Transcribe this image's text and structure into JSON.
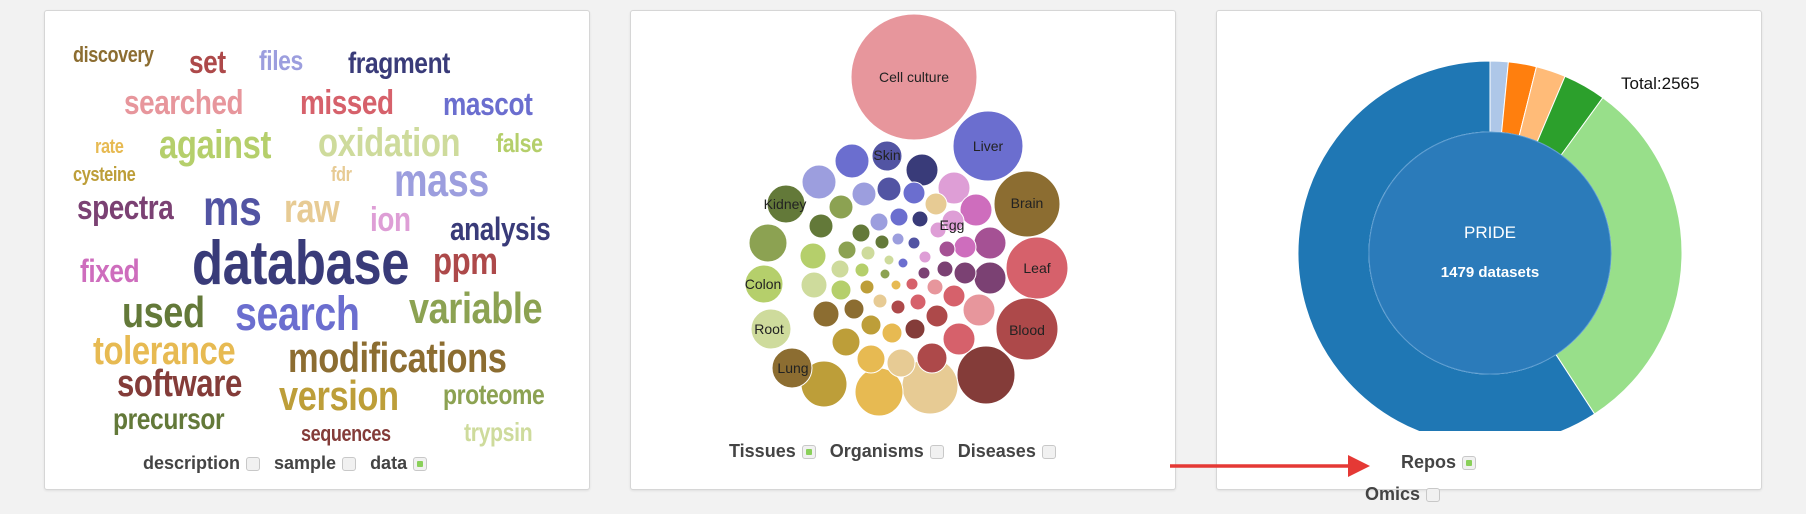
{
  "word_cloud": {
    "words": [
      {
        "text": "discovery",
        "color": "#8c6d31"
      },
      {
        "text": "set",
        "color": "#ad494a"
      },
      {
        "text": "files",
        "color": "#9c9ede"
      },
      {
        "text": "fragment",
        "color": "#393b79"
      },
      {
        "text": "searched",
        "color": "#e7969c"
      },
      {
        "text": "missed",
        "color": "#d6616b"
      },
      {
        "text": "mascot",
        "color": "#6b6ecf"
      },
      {
        "text": "rate",
        "color": "#e7ba52"
      },
      {
        "text": "against",
        "color": "#b5cf6b"
      },
      {
        "text": "oxidation",
        "color": "#cedb9c"
      },
      {
        "text": "false",
        "color": "#b5cf6b"
      },
      {
        "text": "cysteine",
        "color": "#bd9e39"
      },
      {
        "text": "fdr",
        "color": "#e7cb94"
      },
      {
        "text": "mass",
        "color": "#9c9ede"
      },
      {
        "text": "spectra",
        "color": "#7b4173"
      },
      {
        "text": "ms",
        "color": "#5254a3"
      },
      {
        "text": "raw",
        "color": "#e7cb94"
      },
      {
        "text": "ion",
        "color": "#de9ed6"
      },
      {
        "text": "analysis",
        "color": "#393b79"
      },
      {
        "text": "fixed",
        "color": "#ce6dbd"
      },
      {
        "text": "database",
        "color": "#393b79"
      },
      {
        "text": "ppm",
        "color": "#ad494a"
      },
      {
        "text": "used",
        "color": "#637939"
      },
      {
        "text": "search",
        "color": "#6b6ecf"
      },
      {
        "text": "variable",
        "color": "#8ca252"
      },
      {
        "text": "tolerance",
        "color": "#e7ba52"
      },
      {
        "text": "modifications",
        "color": "#8c6d31"
      },
      {
        "text": "software",
        "color": "#843c39"
      },
      {
        "text": "version",
        "color": "#bd9e39"
      },
      {
        "text": "proteome",
        "color": "#8ca252"
      },
      {
        "text": "precursor",
        "color": "#637939"
      },
      {
        "text": "sequences",
        "color": "#843c39"
      },
      {
        "text": "trypsin",
        "color": "#cedb9c"
      }
    ],
    "filters": [
      {
        "label": "description",
        "checked": false
      },
      {
        "label": "sample",
        "checked": false
      },
      {
        "label": "data",
        "checked": true
      }
    ]
  },
  "bubble_chart": {
    "labels": [
      "Cell culture",
      "Liver",
      "Skin",
      "Brain",
      "Kidney",
      "Egg",
      "Leaf",
      "Colon",
      "Blood",
      "Root",
      "Lung"
    ],
    "filters": [
      {
        "label": "Tissues",
        "checked": true
      },
      {
        "label": "Organisms",
        "checked": false
      },
      {
        "label": "Diseases",
        "checked": false
      }
    ]
  },
  "donut_chart": {
    "total_label": "Total:2565",
    "center_title": "PRIDE",
    "center_subtitle": "1479 datasets",
    "filters": [
      {
        "label": "Repos",
        "checked": true
      },
      {
        "label": "Omics",
        "checked": false
      }
    ]
  },
  "annotation": {
    "arrow_color": "#e53935"
  }
}
